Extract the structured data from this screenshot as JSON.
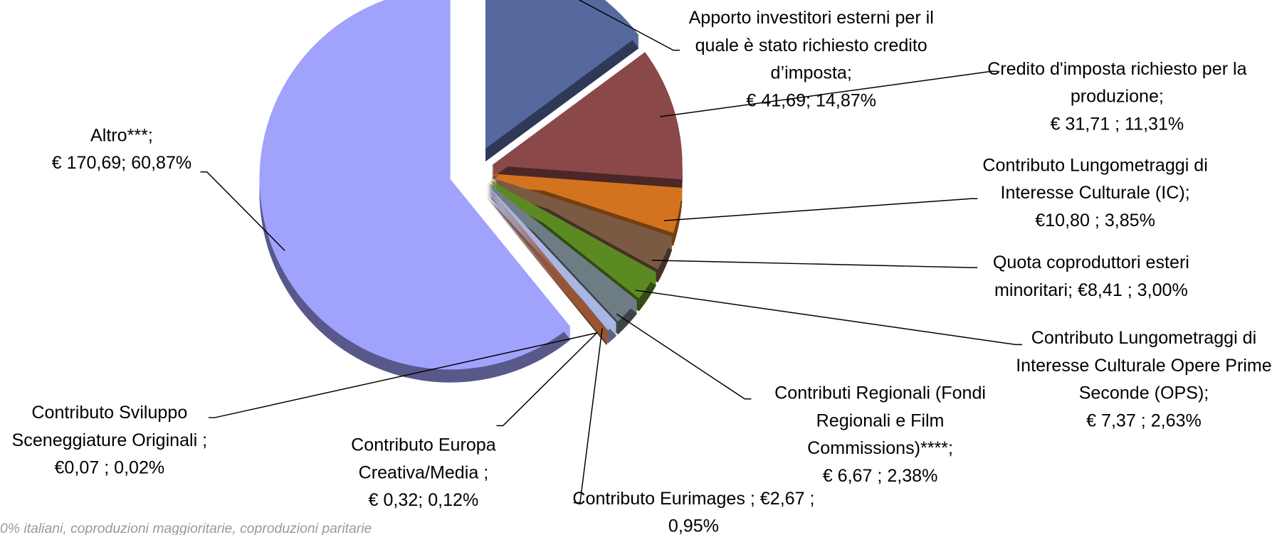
{
  "chart_data": {
    "type": "pie",
    "categories": [
      "Apporto investitori esterni per il quale è stato richiesto credito d’imposta;",
      "Credito d'imposta richiesto per la produzione;",
      "Contributo Lungometraggi di Interesse Culturale (IC);",
      "Quota coproduttori esteri minoritari;",
      "Contributo Lungometraggi di Interesse Culturale Opere Prime Seconde (OPS);",
      "Contributi Regionali (Fondi Regionali e Film Commissions)****;",
      "Contributo Eurimages ;",
      "Contributo Europa Creativa/Media ;",
      "Contributo Sviluppo Sceneggiature Originali ;",
      "Altro***;"
    ],
    "values": [
      41.69,
      31.71,
      10.8,
      8.41,
      7.37,
      6.67,
      2.67,
      0.32,
      0.07,
      170.69
    ],
    "value_labels": [
      "€ 41,69; 14,87%",
      "€ 31,71 ; 11,31%",
      "€10,80 ; 3,85%",
      "€8,41 ; 3,00%",
      "€ 7,37 ; 2,63%",
      "€ 6,67 ; 2,38%",
      "€2,67 ; 0,95%",
      "€ 0,32; 0,12%",
      "€0,07 ; 0,02%",
      "€ 170,69; 60,87%"
    ],
    "colors": [
      "#56699f",
      "#8b4848",
      "#d4731f",
      "#7b5a44",
      "#5b8a22",
      "#6e7c84",
      "#a9b5e2",
      "#a0522d",
      "#8b5a3c",
      "#a0a2fc"
    ],
    "footnote": "0% italiani, coproduzioni maggioritarie, coproduzioni paritarie"
  }
}
